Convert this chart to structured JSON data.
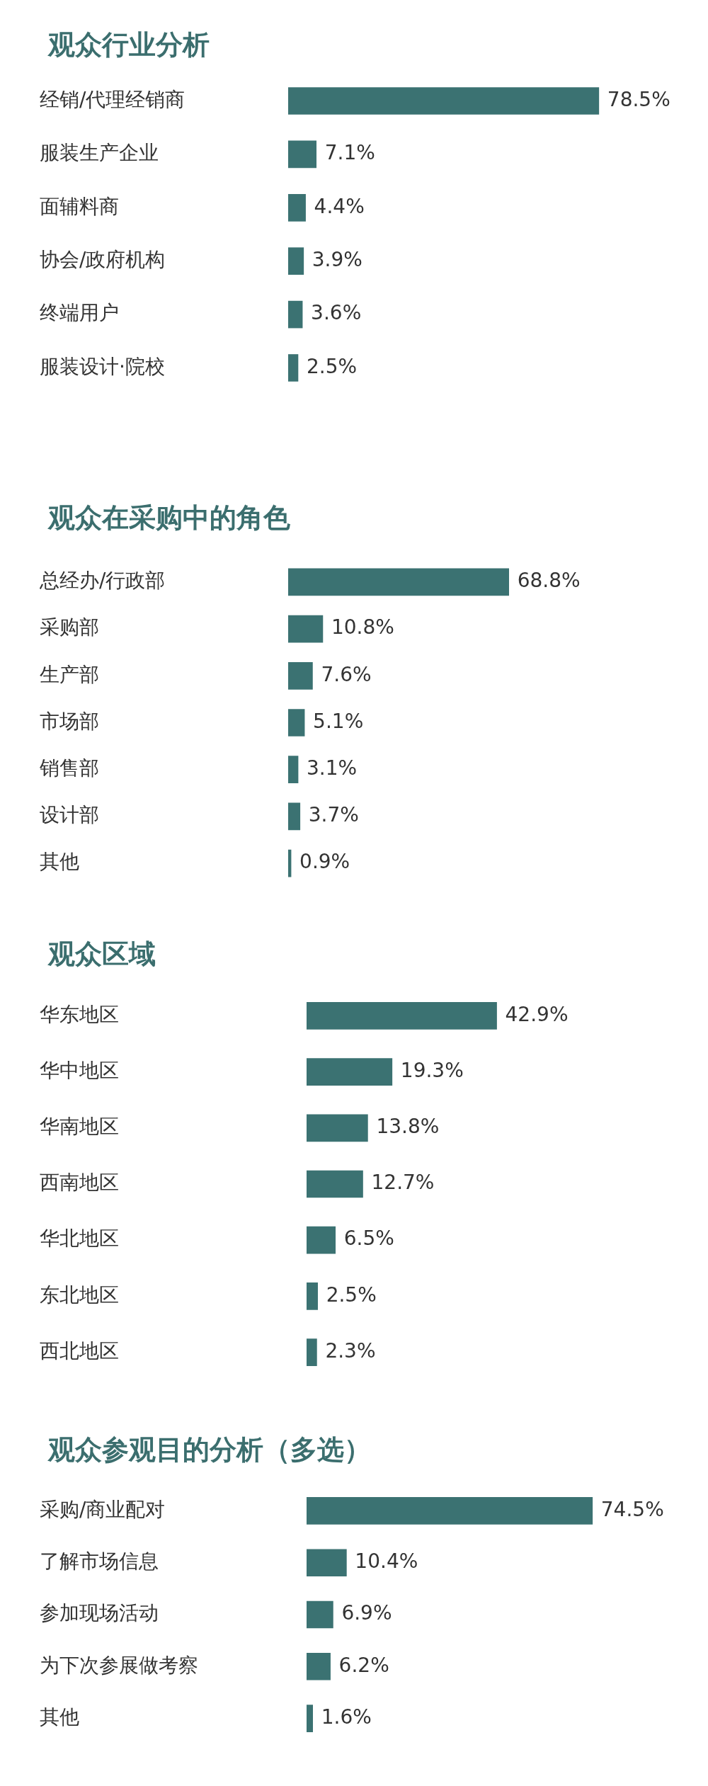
{
  "chart_data": [
    {
      "type": "bar",
      "orientation": "horizontal",
      "title": "观众行业分析",
      "categories": [
        "经销/代理经销商",
        "服装生产企业",
        "面辅料商",
        "协会/政府机构",
        "终端用户",
        "服装设计·院校"
      ],
      "values": [
        78.5,
        7.1,
        4.4,
        3.9,
        3.6,
        2.5
      ],
      "value_labels": [
        "78.5%",
        "7.1%",
        "4.4%",
        "3.9%",
        "3.6%",
        "2.5%"
      ],
      "color": "#3b7272",
      "tick_labels": "y"
    },
    {
      "type": "bar",
      "orientation": "horizontal",
      "title": "观众在采购中的角色",
      "categories": [
        "总经办/行政部",
        "采购部",
        "生产部",
        "市场部",
        "销售部",
        "设计部",
        "其他"
      ],
      "values": [
        68.8,
        10.8,
        7.6,
        5.1,
        3.1,
        3.7,
        0.9
      ],
      "value_labels": [
        "68.8%",
        "10.8%",
        "7.6%",
        "5.1%",
        "3.1%",
        "3.7%",
        "0.9%"
      ],
      "color": "#3b7272",
      "tick_labels": "y"
    },
    {
      "type": "bar",
      "orientation": "horizontal",
      "title": "观众区域",
      "categories": [
        "华东地区",
        "华中地区",
        "华南地区",
        "西南地区",
        "华北地区",
        "东北地区",
        "西北地区"
      ],
      "values": [
        42.9,
        19.3,
        13.8,
        12.7,
        6.5,
        2.5,
        2.3
      ],
      "value_labels": [
        "42.9%",
        "19.3%",
        "13.8%",
        "12.7%",
        "6.5%",
        "2.5%",
        "2.3%"
      ],
      "color": "#3b7272",
      "tick_labels": "y"
    },
    {
      "type": "bar",
      "orientation": "horizontal",
      "title": "观众参观目的分析（多选）",
      "categories": [
        "采购/商业配对",
        "了解市场信息",
        "参加现场活动",
        "为下次参展做考察",
        "其他"
      ],
      "values": [
        74.5,
        10.4,
        6.9,
        6.2,
        1.6
      ],
      "value_labels": [
        "74.5%",
        "10.4%",
        "6.9%",
        "6.2%",
        "1.6%"
      ],
      "color": "#3b7272",
      "tick_labels": "y"
    }
  ]
}
